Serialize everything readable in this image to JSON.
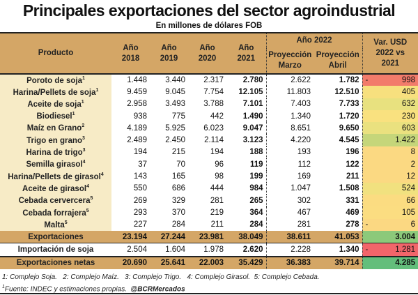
{
  "chart_data": {
    "type": "table",
    "title": "Principales exportaciones del sector agroindustrial",
    "subtitle": "En millones de dólares FOB",
    "headers": {
      "product": "Producto",
      "y2018": "Año 2018",
      "y2019": "Año 2019",
      "y2020": "Año 2020",
      "y2021": "Año 2021",
      "y2022": "Año 2022",
      "marzo": "Proyección Marzo",
      "abril": "Proyección Abril",
      "var": "Var. USD 2022 vs 2021"
    },
    "rows": [
      {
        "name": "Poroto de soja",
        "note": "1",
        "v": [
          "1.448",
          "3.440",
          "2.317",
          "2.780",
          "2.622",
          "1.782"
        ],
        "var": "998",
        "neg": true,
        "color": "#f27b6b"
      },
      {
        "name": "Harina/Pellets de soja",
        "note": "1",
        "v": [
          "9.459",
          "9.045",
          "7.754",
          "12.105",
          "11.803",
          "12.510"
        ],
        "var": "405",
        "neg": false,
        "color": "#f7e07e"
      },
      {
        "name": "Aceite de soja",
        "note": "1",
        "v": [
          "2.958",
          "3.493",
          "3.788",
          "7.101",
          "7.403",
          "7.733"
        ],
        "var": "632",
        "neg": false,
        "color": "#e8e17f"
      },
      {
        "name": "Biodiesel",
        "note": "1",
        "v": [
          "938",
          "775",
          "442",
          "1.490",
          "1.340",
          "1.720"
        ],
        "var": "230",
        "neg": false,
        "color": "#f9e17f"
      },
      {
        "name": "Maíz en Grano",
        "note": "2",
        "v": [
          "4.189",
          "5.925",
          "6.023",
          "9.047",
          "8.651",
          "9.650"
        ],
        "var": "603",
        "neg": false,
        "color": "#eae17f"
      },
      {
        "name": "Trigo en grano",
        "note": "3",
        "v": [
          "2.489",
          "2.450",
          "2.114",
          "3.123",
          "4.220",
          "4.545"
        ],
        "var": "1.422",
        "neg": false,
        "color": "#c5d67a"
      },
      {
        "name": "Harina de trigo",
        "note": "3",
        "v": [
          "194",
          "215",
          "194",
          "188",
          "193",
          "196"
        ],
        "var": "8",
        "neg": false,
        "color": "#fbd982"
      },
      {
        "name": "Semilla girasol",
        "note": "4",
        "v": [
          "37",
          "70",
          "96",
          "119",
          "112",
          "122"
        ],
        "var": "2",
        "neg": false,
        "color": "#fbd982"
      },
      {
        "name": "Harina/Pellets de girasol",
        "note": "4",
        "v": [
          "143",
          "165",
          "98",
          "199",
          "169",
          "211"
        ],
        "var": "12",
        "neg": false,
        "color": "#fbd982"
      },
      {
        "name": "Aceite de girasol",
        "note": "4",
        "v": [
          "550",
          "686",
          "444",
          "984",
          "1.047",
          "1.508"
        ],
        "var": "524",
        "neg": false,
        "color": "#f1e17f"
      },
      {
        "name": "Cebada cervercera",
        "note": "5",
        "v": [
          "269",
          "329",
          "281",
          "265",
          "302",
          "331"
        ],
        "var": "66",
        "neg": false,
        "color": "#fbdc81"
      },
      {
        "name": "Cebada forrajera",
        "note": "5",
        "v": [
          "293",
          "370",
          "219",
          "364",
          "467",
          "469"
        ],
        "var": "105",
        "neg": false,
        "color": "#fbdd81"
      },
      {
        "name": "Malta",
        "note": "5",
        "v": [
          "227",
          "284",
          "211",
          "284",
          "281",
          "278"
        ],
        "var": "6",
        "neg": true,
        "color": "#fbd882"
      }
    ],
    "exports": {
      "name": "Exportaciones",
      "v": [
        "23.194",
        "27.244",
        "23.981",
        "38.049",
        "38.611",
        "41.053"
      ],
      "var": "3.004",
      "neg": false,
      "color": "#8cc97a"
    },
    "imports": {
      "name": "Importación de soja",
      "v": [
        "2.504",
        "1.604",
        "1.978",
        "2.620",
        "2.228",
        "1.340"
      ],
      "var": "1.281",
      "neg": true,
      "color": "#f2656a"
    },
    "net": {
      "name": "Exportaciones netas",
      "v": [
        "20.690",
        "25.641",
        "22.003",
        "35.429",
        "36.383",
        "39.714"
      ],
      "var": "4.285",
      "neg": false,
      "color": "#63be7b"
    },
    "negative_sign": "-",
    "footnote1": "1: Complejo Soja.   2: Complejo Maíz.   3: Complejo Trigo.   4: Complejo Girasol.  5: Complejo Cebada.",
    "footnote2": "Fuente: INDEC y estimaciones propias.",
    "footnote_handle": "@BCRMercados"
  }
}
